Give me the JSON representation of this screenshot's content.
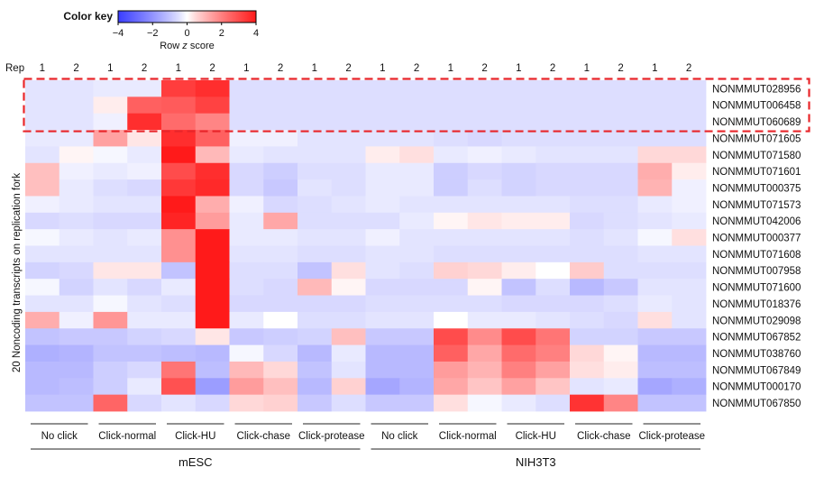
{
  "chart_data": {
    "type": "heatmap",
    "color_key": {
      "title": "Color key",
      "label": "Row z score",
      "ticks": [
        "−4",
        "−2",
        "0",
        "2",
        "4"
      ],
      "tick_values": [
        -4,
        -2,
        0,
        2,
        4
      ],
      "range": [
        -4,
        4
      ],
      "colors": {
        "low": "#3a3dff",
        "mid": "#ffffff",
        "high": "#ff1a1a"
      }
    },
    "rep_label": "Rep",
    "reps": [
      "1",
      "2",
      "1",
      "2",
      "1",
      "2",
      "1",
      "2",
      "1",
      "2",
      "1",
      "2",
      "1",
      "2",
      "1",
      "2",
      "1",
      "2",
      "1",
      "2"
    ],
    "condition_groups": [
      {
        "label": "No click"
      },
      {
        "label": "Click-normal"
      },
      {
        "label": "Click-HU"
      },
      {
        "label": "Click-chase"
      },
      {
        "label": "Click-protease"
      },
      {
        "label": "No click"
      },
      {
        "label": "Click-normal"
      },
      {
        "label": "Click-HU"
      },
      {
        "label": "Click-chase"
      },
      {
        "label": "Click-protease"
      }
    ],
    "cell_lines": [
      {
        "label": "mESC"
      },
      {
        "label": "NIH3T3"
      }
    ],
    "y_axis_label": "20 Noncoding transcripts on replication fork",
    "rows": [
      "NONMMUT028956",
      "NONMMUT006458",
      "NONMMUT060689",
      "NONMMUT071605",
      "NONMMUT071580",
      "NONMMUT071601",
      "NONMMUT000375",
      "NONMMUT071573",
      "NONMMUT042006",
      "NONMMUT000377",
      "NONMMUT071608",
      "NONMMUT007958",
      "NONMMUT071600",
      "NONMMUT018376",
      "NONMMUT029098",
      "NONMMUT067852",
      "NONMMUT038760",
      "NONMMUT067849",
      "NONMMUT000170",
      "NONMMUT067850"
    ],
    "values": [
      [
        -0.4,
        -0.4,
        -0.3,
        -0.3,
        3.3,
        3.6,
        -0.5,
        -0.5,
        -0.5,
        -0.5,
        -0.5,
        -0.5,
        -0.5,
        -0.5,
        -0.5,
        -0.5,
        -0.5,
        -0.5,
        -0.5,
        -0.5
      ],
      [
        -0.4,
        -0.4,
        0.2,
        2.6,
        2.7,
        3.2,
        -0.5,
        -0.5,
        -0.5,
        -0.5,
        -0.5,
        -0.5,
        -0.5,
        -0.5,
        -0.5,
        -0.5,
        -0.5,
        -0.5,
        -0.5,
        -0.5
      ],
      [
        -0.4,
        -0.4,
        -0.2,
        3.6,
        2.4,
        1.9,
        -0.5,
        -0.5,
        -0.5,
        -0.5,
        -0.5,
        -0.5,
        -0.5,
        -0.5,
        -0.5,
        -0.5,
        -0.5,
        -0.5,
        -0.5,
        -0.5
      ],
      [
        -0.3,
        -0.3,
        1.4,
        0.3,
        3.6,
        2.6,
        -0.2,
        -0.2,
        -0.4,
        -0.4,
        -0.4,
        -0.4,
        -0.5,
        -0.6,
        -0.5,
        -0.5,
        -0.5,
        -0.5,
        -0.5,
        -0.5
      ],
      [
        -0.4,
        0.1,
        -0.1,
        -0.3,
        4.0,
        1.0,
        -0.3,
        -0.4,
        -0.4,
        -0.4,
        0.2,
        0.4,
        -0.3,
        -0.2,
        -0.3,
        -0.4,
        -0.4,
        -0.4,
        0.5,
        0.5
      ],
      [
        0.9,
        -0.2,
        -0.3,
        -0.2,
        3.0,
        3.6,
        -0.6,
        -0.8,
        -0.5,
        -0.5,
        -0.3,
        -0.3,
        -0.8,
        -0.6,
        -0.7,
        -0.6,
        -0.6,
        -0.6,
        1.2,
        0.2
      ],
      [
        0.9,
        -0.3,
        -0.5,
        -0.6,
        3.4,
        3.7,
        -0.6,
        -0.9,
        -0.4,
        -0.5,
        -0.3,
        -0.3,
        -0.8,
        -0.5,
        -0.7,
        -0.6,
        -0.6,
        -0.6,
        1.1,
        -0.2
      ],
      [
        -0.2,
        -0.3,
        -0.4,
        -0.4,
        4.0,
        1.2,
        -0.2,
        -0.6,
        -0.5,
        -0.4,
        -0.3,
        -0.4,
        -0.4,
        -0.4,
        -0.4,
        -0.4,
        -0.5,
        -0.5,
        -0.3,
        -0.2
      ],
      [
        -0.6,
        -0.5,
        -0.6,
        -0.6,
        3.8,
        1.5,
        -0.3,
        1.3,
        -0.5,
        -0.5,
        -0.5,
        -0.3,
        0.1,
        0.3,
        0.2,
        0.2,
        -0.6,
        -0.5,
        -0.4,
        -0.3
      ],
      [
        -0.1,
        -0.3,
        -0.4,
        -0.3,
        1.7,
        4.0,
        -0.3,
        -0.3,
        -0.4,
        -0.4,
        -0.2,
        -0.4,
        -0.4,
        -0.4,
        -0.4,
        -0.4,
        -0.5,
        -0.4,
        -0.1,
        0.4
      ],
      [
        -0.4,
        -0.4,
        -0.4,
        -0.4,
        1.7,
        4.0,
        -0.4,
        -0.4,
        -0.5,
        -0.5,
        -0.4,
        -0.4,
        -0.5,
        -0.5,
        -0.5,
        -0.5,
        -0.5,
        -0.5,
        -0.4,
        -0.4
      ],
      [
        -0.7,
        -0.6,
        0.3,
        0.3,
        -1.0,
        4.0,
        -0.5,
        -0.5,
        -1.0,
        0.4,
        -0.4,
        -0.5,
        0.6,
        0.5,
        0.2,
        0.0,
        0.7,
        -0.5,
        -0.5,
        -0.5
      ],
      [
        -0.1,
        -0.7,
        -0.4,
        -0.6,
        -0.3,
        4.0,
        -0.5,
        -0.6,
        1.0,
        0.1,
        -0.6,
        -0.6,
        -0.6,
        0.1,
        -1.0,
        -0.5,
        -1.2,
        -0.9,
        -0.4,
        -0.4
      ],
      [
        -0.4,
        -0.4,
        -0.1,
        -0.4,
        -0.5,
        4.0,
        -0.6,
        -0.6,
        -0.6,
        -0.6,
        -0.5,
        -0.5,
        -0.5,
        -0.5,
        -0.6,
        -0.6,
        -0.6,
        -0.5,
        -0.3,
        -0.4
      ],
      [
        1.2,
        -0.2,
        1.6,
        -0.3,
        -0.3,
        4.0,
        -0.3,
        0.0,
        -0.5,
        -0.5,
        -0.4,
        -0.4,
        0.0,
        -0.3,
        -0.3,
        -0.4,
        -0.5,
        -0.6,
        0.4,
        -0.4
      ],
      [
        -1.0,
        -0.9,
        -0.9,
        -0.7,
        -0.6,
        0.3,
        -0.9,
        -0.8,
        -0.7,
        0.9,
        -0.9,
        -0.9,
        3.0,
        1.8,
        3.0,
        2.2,
        -0.7,
        -0.7,
        -0.9,
        -0.9
      ],
      [
        -1.4,
        -1.3,
        -1.0,
        -1.0,
        -1.1,
        -1.2,
        -0.1,
        -0.6,
        -1.2,
        -0.3,
        -1.2,
        -1.2,
        2.6,
        1.3,
        2.4,
        2.0,
        0.5,
        0.1,
        -1.2,
        -1.2
      ],
      [
        -1.2,
        -1.2,
        -0.8,
        -0.6,
        2.2,
        -1.1,
        1.0,
        0.5,
        -1.0,
        -0.4,
        -1.2,
        -1.2,
        1.5,
        1.1,
        2.0,
        1.4,
        0.4,
        0.2,
        -1.1,
        -1.1
      ],
      [
        -1.2,
        -1.1,
        -0.8,
        -0.3,
        2.9,
        -1.8,
        1.5,
        0.9,
        -1.2,
        0.6,
        -1.6,
        -1.3,
        1.3,
        0.8,
        1.4,
        0.8,
        -0.4,
        -0.3,
        -1.6,
        -1.4
      ],
      [
        -1.0,
        -1.0,
        2.5,
        -0.6,
        -0.4,
        -0.6,
        0.5,
        0.6,
        -0.9,
        -0.5,
        -0.9,
        -0.9,
        0.4,
        -0.1,
        -0.3,
        -0.5,
        3.5,
        1.9,
        -1.0,
        -1.0
      ]
    ],
    "highlight": {
      "rows": [
        "NONMMUT028956",
        "NONMMUT006458",
        "NONMMUT060689"
      ],
      "color": "#e8252a",
      "style": "dashed"
    }
  }
}
